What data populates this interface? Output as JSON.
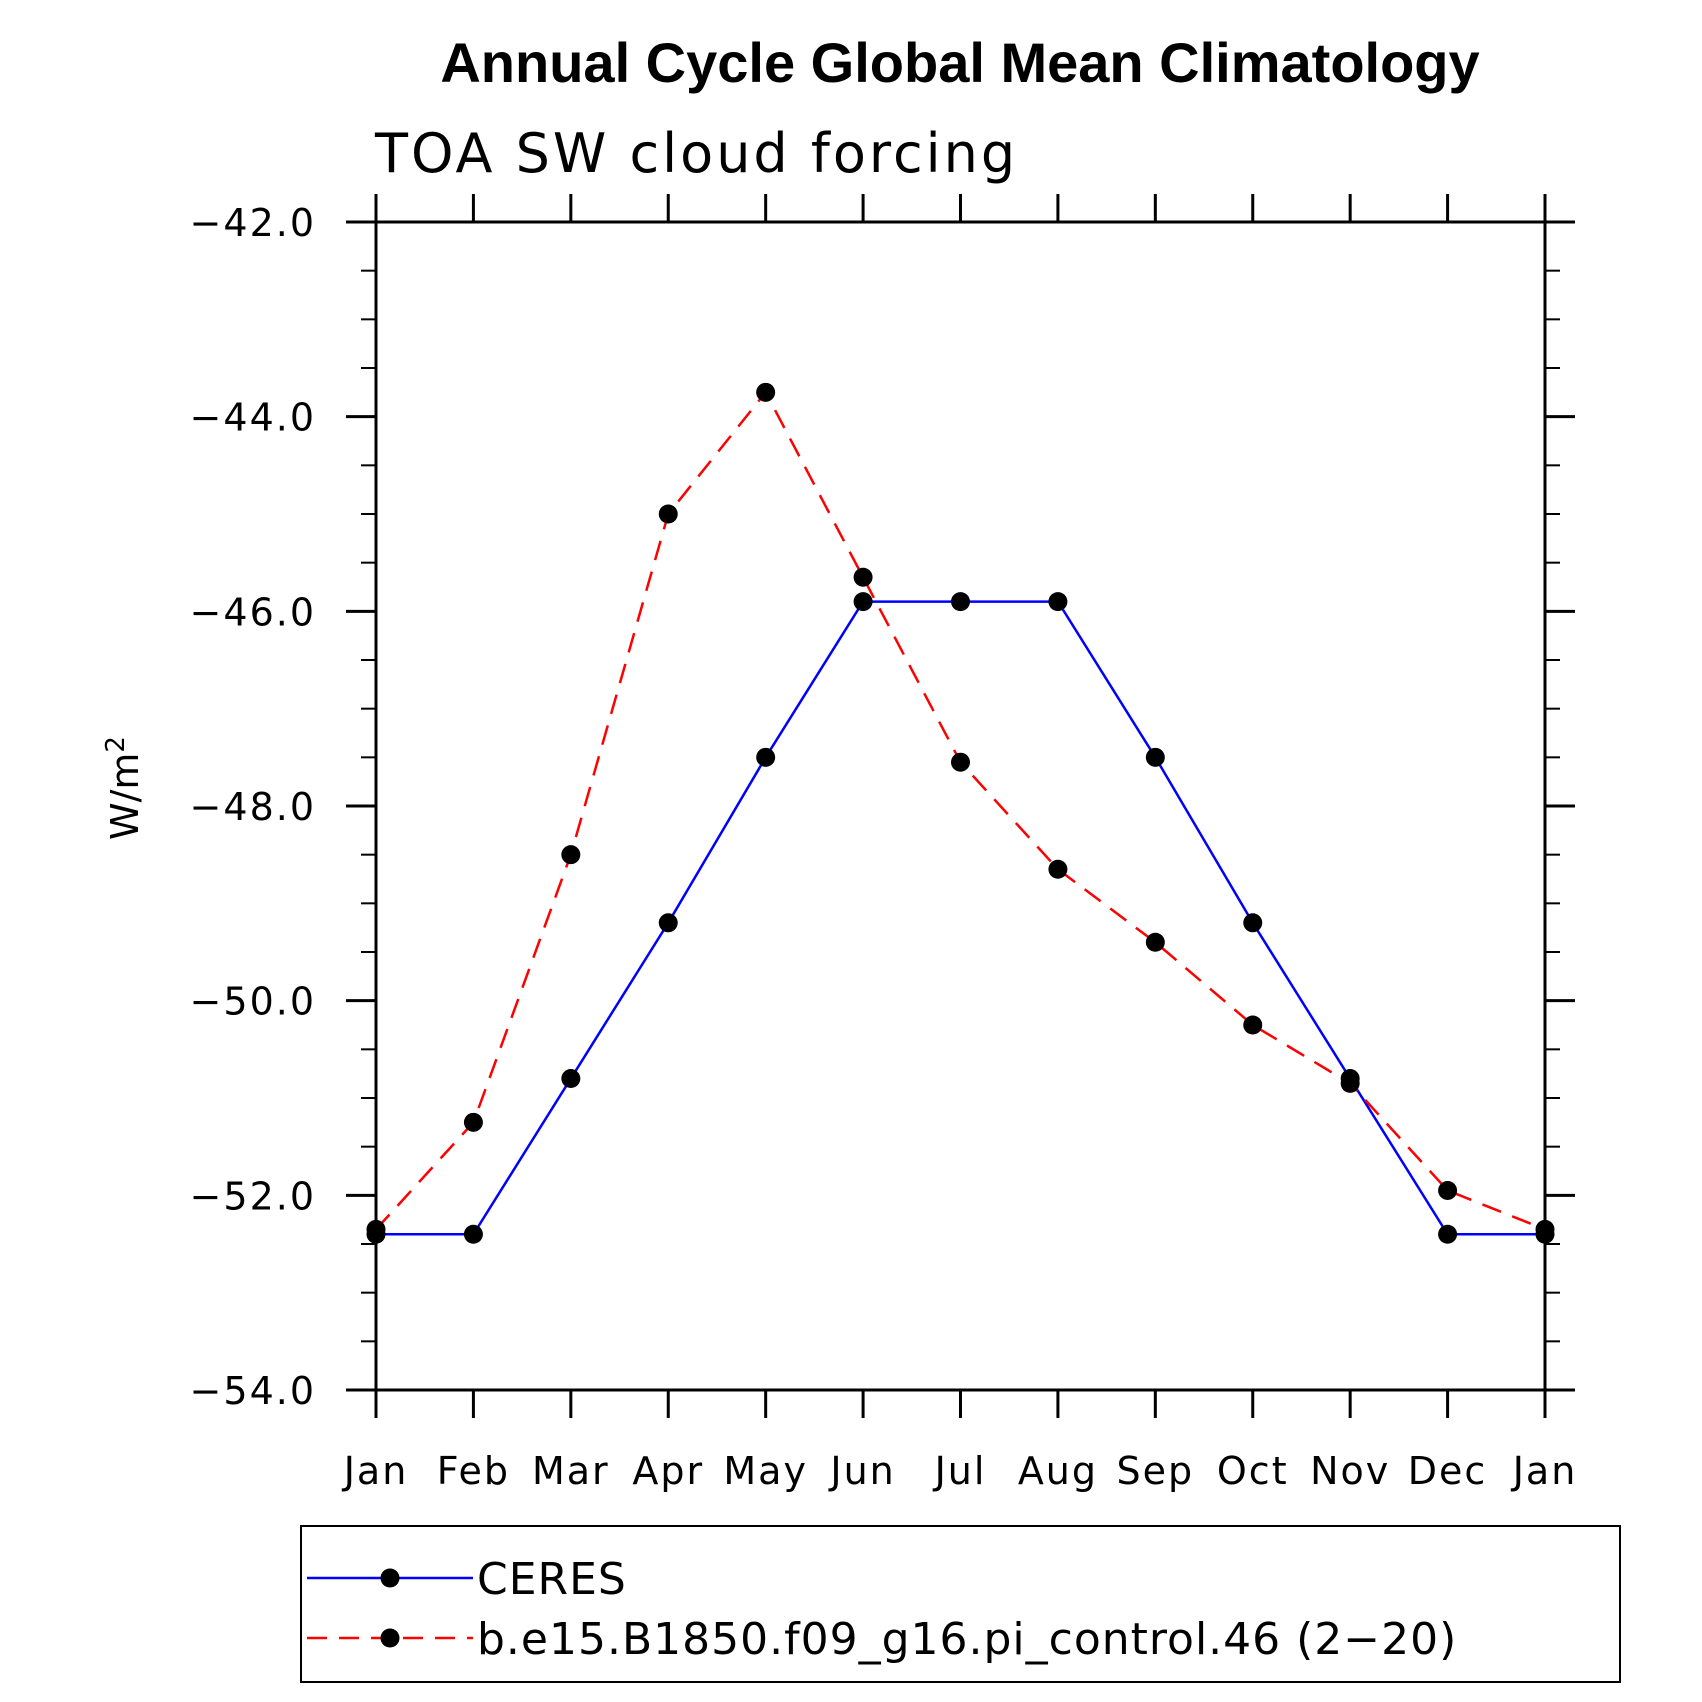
{
  "chart_data": {
    "type": "line",
    "title": "Annual Cycle Global Mean Climatology",
    "subtitle": "TOA SW cloud forcing",
    "ylabel": "W/m",
    "ylabel_superscript": "2",
    "xlabel": "",
    "categories": [
      "Jan",
      "Feb",
      "Mar",
      "Apr",
      "May",
      "Jun",
      "Jul",
      "Aug",
      "Sep",
      "Oct",
      "Nov",
      "Dec",
      "Jan"
    ],
    "ylim": [
      -54.0,
      -42.0
    ],
    "yticks": [
      "-42.0",
      "-44.0",
      "-46.0",
      "-48.0",
      "-50.0",
      "-52.0",
      "-54.0"
    ],
    "ytick_values": [
      -42.0,
      -44.0,
      -46.0,
      -48.0,
      -50.0,
      -52.0,
      -54.0
    ],
    "grid": false,
    "legend_position": "bottom",
    "series": [
      {
        "name": "CERES",
        "color": "#0000ff",
        "line_style": "solid",
        "marker": "filled-circle",
        "values": [
          -52.4,
          -52.4,
          -50.8,
          -49.2,
          -47.5,
          -45.9,
          -45.9,
          -45.9,
          -47.5,
          -49.2,
          -50.8,
          -52.4,
          -52.4
        ]
      },
      {
        "name": "b.e15.B1850.f09_g16.pi_control.46 (2-20)",
        "color": "#ff0000",
        "line_style": "dashed",
        "marker": "filled-circle",
        "values": [
          -52.35,
          -51.25,
          -48.5,
          -45.0,
          -43.75,
          -45.65,
          -47.55,
          -48.65,
          -49.4,
          -50.25,
          -50.85,
          -51.95,
          -52.35
        ]
      }
    ]
  }
}
